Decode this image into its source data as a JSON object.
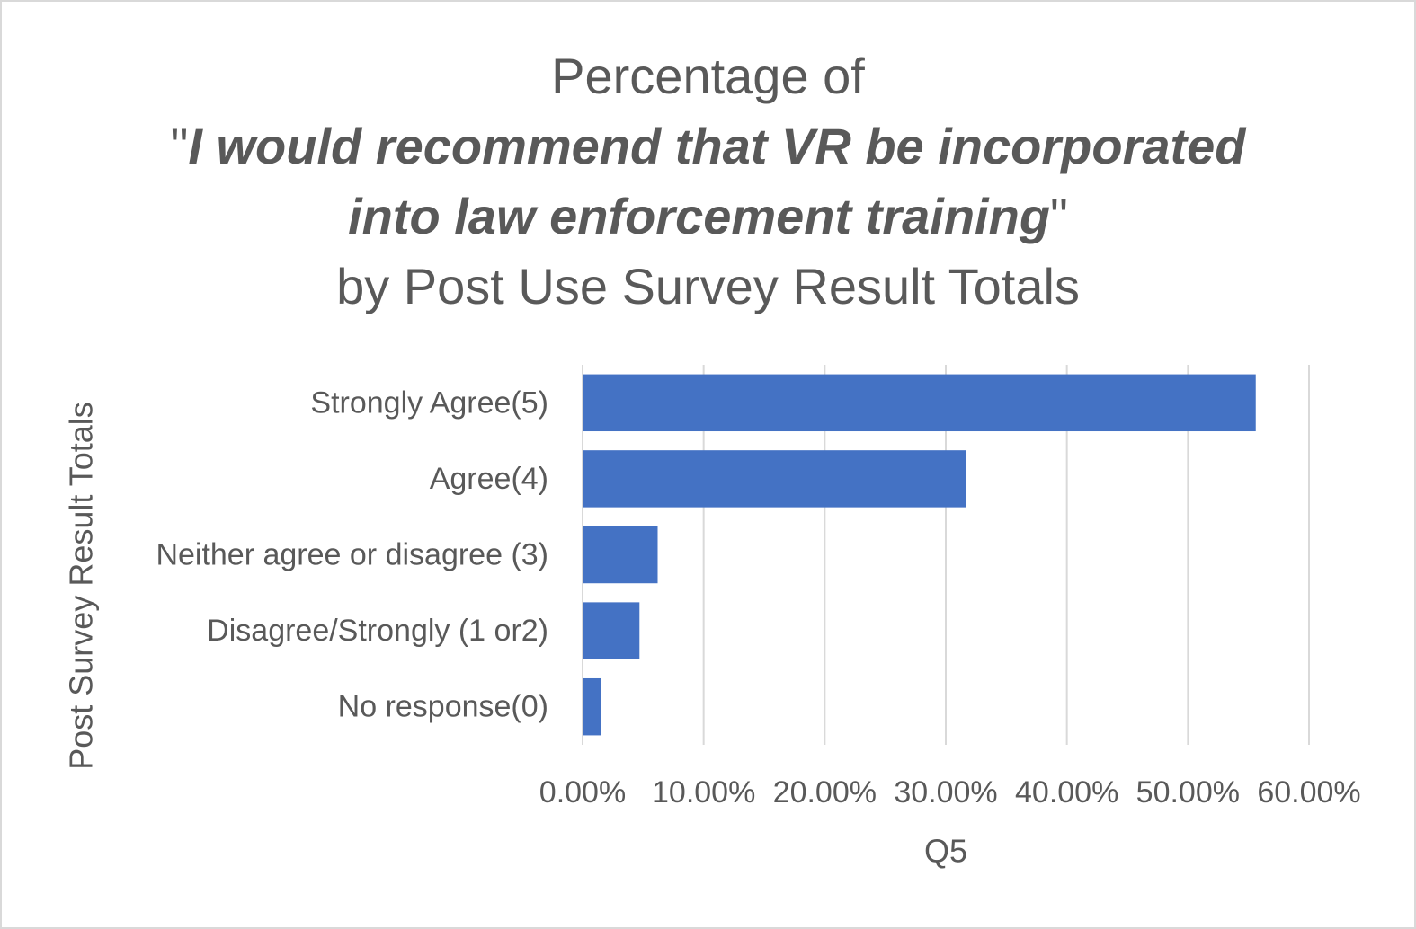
{
  "chart_data": {
    "type": "bar",
    "orientation": "horizontal",
    "title": {
      "line1": "Percentage of",
      "quote_open": "\"",
      "quote_line2": "I would recommend that VR be incorporated",
      "quote_line3": "into law enforcement training",
      "quote_close": "\"",
      "line4": "by Post Use Survey Result Totals"
    },
    "xlabel": "Q5",
    "ylabel": "Post Survey Result Totals",
    "categories": [
      "Strongly Agree(5)",
      "Agree(4)",
      "Neither agree or disagree (3)",
      "Disagree/Strongly (1 or2)",
      "No response(0)"
    ],
    "values": [
      0.556,
      0.317,
      0.062,
      0.047,
      0.015
    ],
    "xlim": [
      0,
      0.6
    ],
    "x_ticks": [
      0,
      0.1,
      0.2,
      0.3,
      0.4,
      0.5,
      0.6
    ],
    "x_tick_labels": [
      "0.00%",
      "10.00%",
      "20.00%",
      "30.00%",
      "40.00%",
      "50.00%",
      "60.00%"
    ],
    "grid": true,
    "legend": "none",
    "bar_color": "#4472c4",
    "grid_color": "#d9d9d9"
  }
}
